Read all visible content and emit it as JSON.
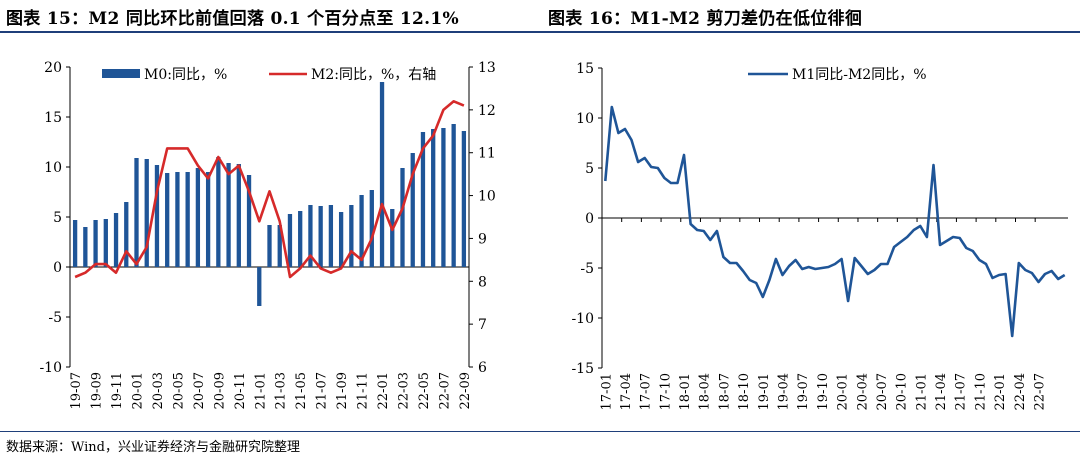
{
  "titles": {
    "left": "图表 15：M2 同比环比前值回落 0.1 个百分点至 12.1%",
    "right": "图表 16：M1-M2 剪刀差仍在低位徘徊"
  },
  "source": "数据来源：Wind，兴业证券经济与金融研究院整理",
  "colors": {
    "m0_bar": "#1f5597",
    "m2_line": "#d62a2a",
    "m1m2_line": "#1f5597",
    "rule": "#1f3f7a"
  },
  "chart_data": [
    {
      "type": "bar",
      "title": "图表 15：M2 同比环比前值回落 0.1 个百分点至 12.1%",
      "legend_position": "top",
      "grid": false,
      "x_tick_labels": [
        "19-07",
        "19-09",
        "19-11",
        "20-01",
        "20-03",
        "20-05",
        "20-07",
        "20-09",
        "20-11",
        "21-01",
        "21-03",
        "21-05",
        "21-07",
        "21-09",
        "21-11",
        "22-01",
        "22-03",
        "22-05",
        "22-07",
        "22-09"
      ],
      "x": [
        "19-07",
        "19-08",
        "19-09",
        "19-10",
        "19-11",
        "19-12",
        "20-01",
        "20-02",
        "20-03",
        "20-04",
        "20-05",
        "20-06",
        "20-07",
        "20-08",
        "20-09",
        "20-10",
        "20-11",
        "20-12",
        "21-01",
        "21-02",
        "21-03",
        "21-04",
        "21-05",
        "21-06",
        "21-07",
        "21-08",
        "21-09",
        "21-10",
        "21-11",
        "21-12",
        "22-01",
        "22-02",
        "22-03",
        "22-04",
        "22-05",
        "22-06",
        "22-07",
        "22-08",
        "22-09"
      ],
      "ylim_left": [
        -10,
        20
      ],
      "yticks_left": [
        -10,
        -5,
        0,
        5,
        10,
        15,
        20
      ],
      "ylim_right": [
        6,
        13
      ],
      "yticks_right": [
        6,
        7,
        8,
        9,
        10,
        11,
        12,
        13
      ],
      "series": [
        {
          "name": "M0:同比，%",
          "kind": "bar",
          "axis": "left",
          "values": [
            4.7,
            4.0,
            4.7,
            4.8,
            5.4,
            6.5,
            10.9,
            10.8,
            10.2,
            9.4,
            9.5,
            9.5,
            9.9,
            9.5,
            11.0,
            10.4,
            10.3,
            9.2,
            -3.9,
            4.2,
            4.2,
            5.3,
            5.6,
            6.2,
            6.1,
            6.2,
            5.5,
            6.2,
            7.2,
            7.7,
            18.5,
            5.8,
            9.9,
            11.4,
            13.5,
            13.8,
            13.9,
            14.3,
            13.6
          ]
        },
        {
          "name": "M2:同比，%，右轴",
          "kind": "line",
          "axis": "right",
          "values": [
            8.1,
            8.2,
            8.4,
            8.4,
            8.2,
            8.7,
            8.4,
            8.8,
            10.1,
            11.1,
            11.1,
            11.1,
            10.7,
            10.4,
            10.9,
            10.5,
            10.7,
            10.1,
            9.4,
            10.1,
            9.4,
            8.1,
            8.3,
            8.6,
            8.3,
            8.2,
            8.3,
            8.7,
            8.5,
            9.0,
            9.8,
            9.2,
            9.7,
            10.5,
            11.1,
            11.4,
            12.0,
            12.2,
            12.1
          ]
        }
      ]
    },
    {
      "type": "line",
      "title": "图表 16：M1-M2 剪刀差仍在低位徘徊",
      "legend_position": "top",
      "grid": false,
      "x_tick_labels": [
        "17-01",
        "17-04",
        "17-07",
        "17-10",
        "18-01",
        "18-04",
        "18-07",
        "18-10",
        "19-01",
        "19-04",
        "19-07",
        "19-10",
        "20-01",
        "20-04",
        "20-07",
        "20-10",
        "21-01",
        "21-04",
        "21-07",
        "21-10",
        "22-01",
        "22-04",
        "22-07"
      ],
      "ylim": [
        -15,
        15
      ],
      "yticks": [
        -15,
        -10,
        -5,
        0,
        5,
        10,
        15
      ],
      "series": [
        {
          "name": "M1同比-M2同比，%",
          "values": [
            3.7,
            11.1,
            8.5,
            8.9,
            7.8,
            5.6,
            6.0,
            5.1,
            5.0,
            4.0,
            3.5,
            3.5,
            6.3,
            -0.6,
            -1.2,
            -1.3,
            -2.2,
            -1.3,
            -3.9,
            -4.5,
            -4.5,
            -5.3,
            -6.2,
            -6.5,
            -7.9,
            -6.2,
            -4.1,
            -5.7,
            -4.8,
            -4.2,
            -5.1,
            -4.9,
            -5.1,
            -5.0,
            -4.9,
            -4.6,
            -4.1,
            -8.3,
            -4.0,
            -4.8,
            -5.6,
            -5.2,
            -4.6,
            -4.6,
            -2.9,
            -2.4,
            -1.9,
            -1.2,
            -0.8,
            -1.9,
            5.3,
            -2.7,
            -2.3,
            -1.9,
            -2.0,
            -3.0,
            -3.3,
            -4.2,
            -4.6,
            -6.0,
            -5.7,
            -5.6,
            -11.8,
            -4.5,
            -5.2,
            -5.5,
            -6.4,
            -5.6,
            -5.3,
            -6.1,
            -5.7
          ]
        }
      ]
    }
  ]
}
